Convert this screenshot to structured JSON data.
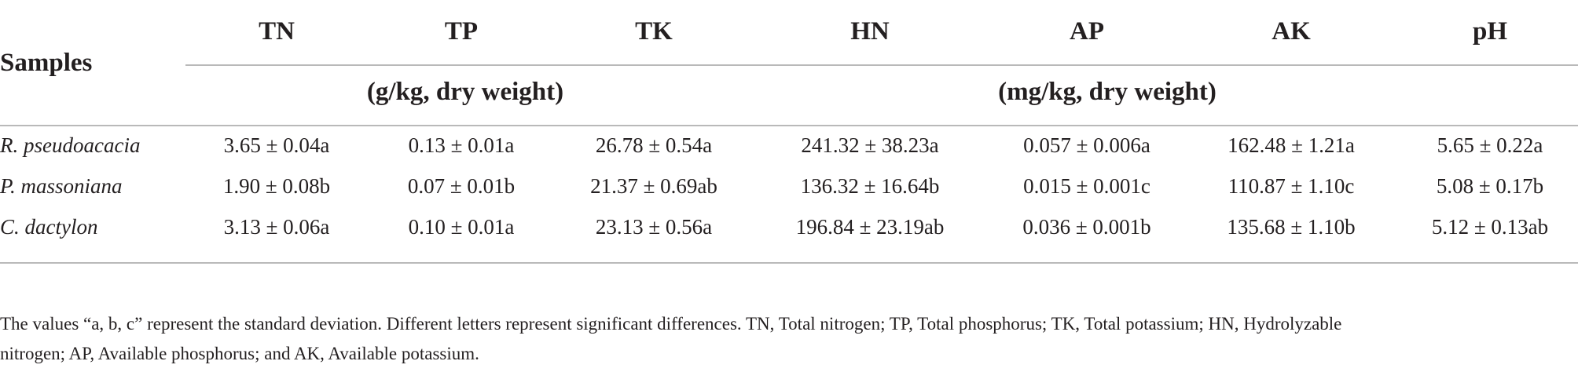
{
  "table": {
    "stub_header": "Samples",
    "columns": [
      "TN",
      "TP",
      "TK",
      "HN",
      "AP",
      "AK",
      "pH"
    ],
    "units": {
      "left": "(g/kg, dry weight)",
      "right": "(mg/kg, dry weight)"
    },
    "rows": [
      {
        "label": "R. pseudoacacia",
        "cells": [
          "3.65 ± 0.04a",
          "0.13 ± 0.01a",
          "26.78 ± 0.54a",
          "241.32 ± 38.23a",
          "0.057 ± 0.006a",
          "162.48 ± 1.21a",
          "5.65 ± 0.22a"
        ]
      },
      {
        "label": "P. massoniana",
        "cells": [
          "1.90 ± 0.08b",
          "0.07 ± 0.01b",
          "21.37 ± 0.69ab",
          "136.32 ± 16.64b",
          "0.015 ± 0.001c",
          "110.87 ± 1.10c",
          "5.08 ± 0.17b"
        ]
      },
      {
        "label": "C. dactylon",
        "cells": [
          "3.13 ± 0.06a",
          "0.10 ± 0.01a",
          "23.13 ± 0.56a",
          "196.84 ± 23.19ab",
          "0.036 ± 0.001b",
          "135.68 ± 1.10b",
          "5.12 ± 0.13ab"
        ]
      }
    ]
  },
  "footnote": {
    "line1": "The values “a, b, c” represent the standard deviation. Different letters represent significant differences. TN, Total nitrogen; TP, Total phosphorus; TK, Total potassium; HN, Hydrolyzable",
    "line2": "nitrogen; AP, Available phosphorus; and AK, Available potassium."
  }
}
